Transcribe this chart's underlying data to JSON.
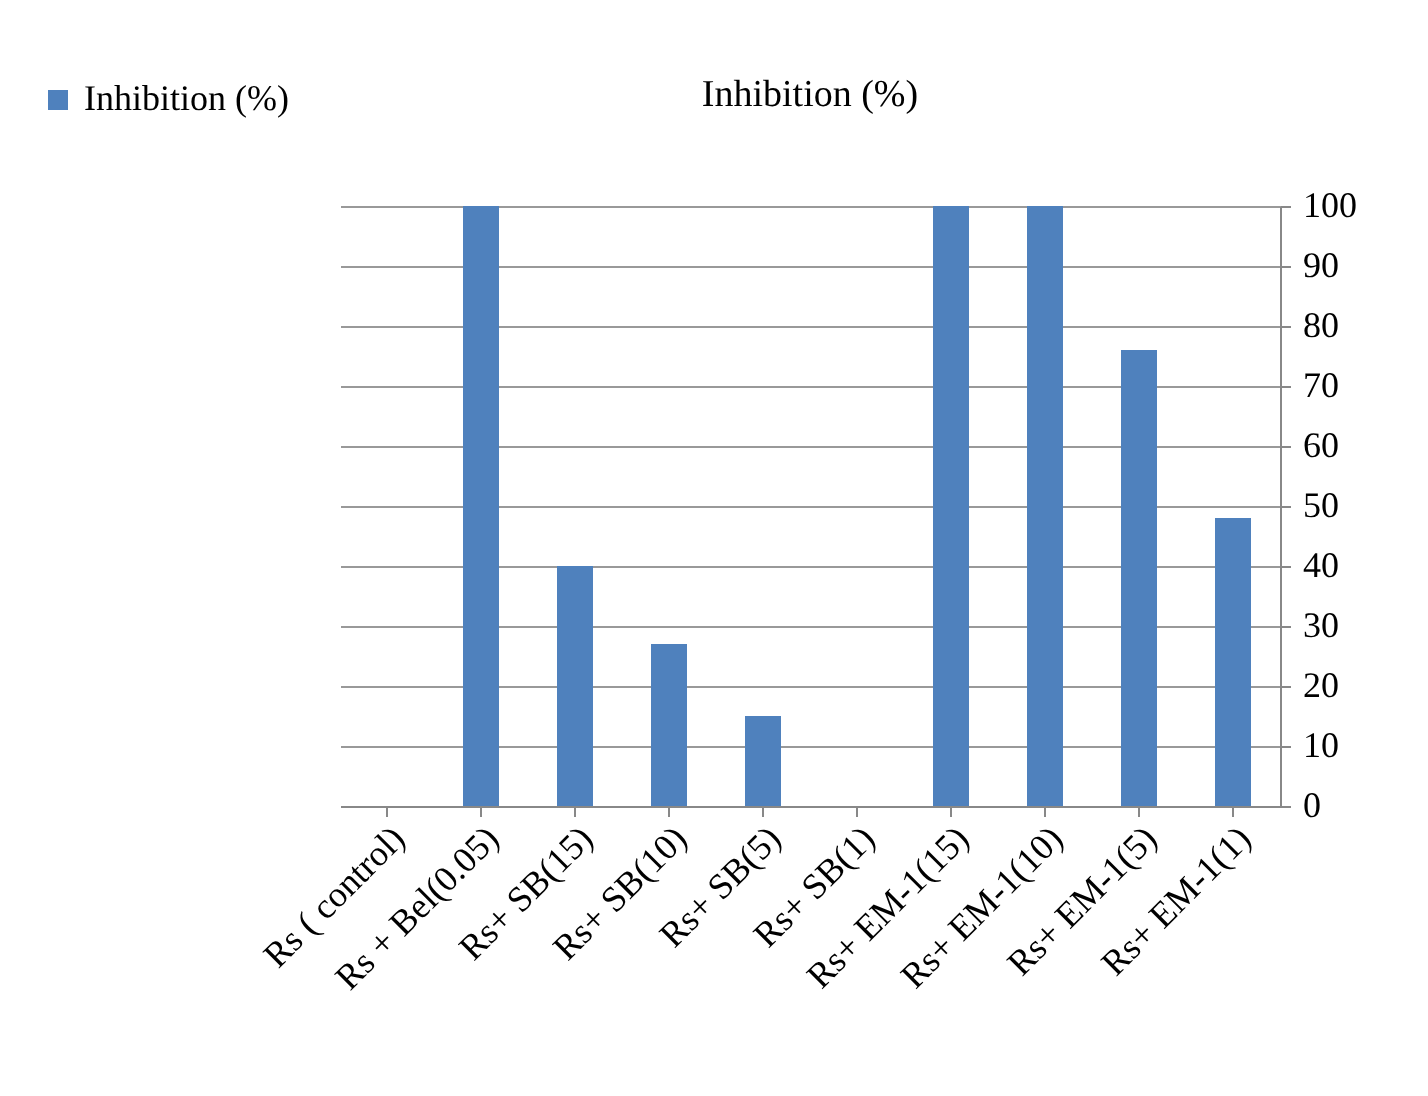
{
  "chart_data": {
    "type": "bar",
    "title": "Inhibition (%)",
    "categories": [
      "Rs ( control)",
      "Rs + Bel(0.05)",
      "Rs+ SB(15)",
      "Rs+ SB(10)",
      "Rs+ SB(5)",
      "Rs+ SB(1)",
      "Rs+  EM-1(15)",
      "Rs+  EM-1(10)",
      "Rs+  EM-1(5)",
      "Rs+  EM-1(1)"
    ],
    "series": [
      {
        "name": "Inhibition (%)",
        "color": "#4f81bd",
        "values": [
          0,
          100,
          40,
          27,
          15,
          0,
          100,
          100,
          76,
          48
        ]
      }
    ],
    "ylim": [
      0,
      100
    ],
    "yticks": [
      0,
      10,
      20,
      30,
      40,
      50,
      60,
      70,
      80,
      90,
      100
    ],
    "grid": "y",
    "legend": "top left"
  }
}
